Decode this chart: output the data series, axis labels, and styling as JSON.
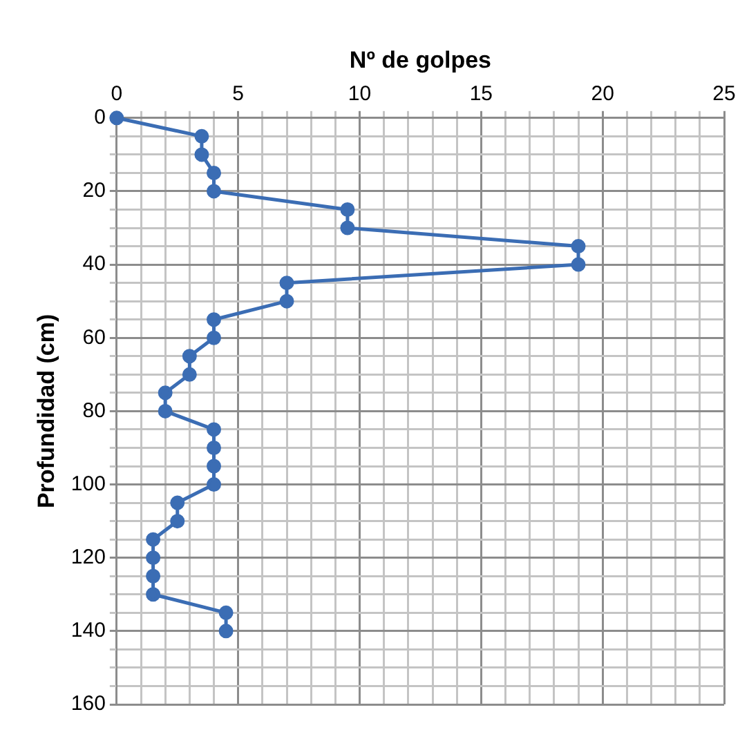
{
  "chart_data": {
    "type": "line",
    "xlabel": "Nº de golpes",
    "ylabel": "Profundidad (cm)",
    "xlim": [
      0,
      25
    ],
    "xticks": [
      0,
      {
        "value": 1,
        "label": null
      },
      {
        "value": 2,
        "label": null
      },
      {
        "value": 3,
        "label": null
      },
      {
        "value": 4,
        "label": null
      },
      5,
      {
        "value": 6,
        "label": null
      },
      {
        "value": 7,
        "label": null
      },
      {
        "value": 8,
        "label": null
      },
      {
        "value": 9,
        "label": null
      },
      10,
      {
        "value": 11,
        "label": null
      },
      {
        "value": 12,
        "label": null
      },
      {
        "value": 13,
        "label": null
      },
      {
        "value": 14,
        "label": null
      },
      15,
      {
        "value": 16,
        "label": null
      },
      {
        "value": 17,
        "label": null
      },
      {
        "value": 18,
        "label": null
      },
      {
        "value": 19,
        "label": null
      },
      20,
      {
        "value": 21,
        "label": null
      },
      {
        "value": 22,
        "label": null
      },
      {
        "value": 23,
        "label": null
      },
      {
        "value": 24,
        "label": null
      },
      25
    ],
    "ylim": [
      160,
      0
    ],
    "yticks": [
      0,
      {
        "value": 5,
        "label": null
      },
      {
        "value": 10,
        "label": null
      },
      {
        "value": 15,
        "label": null
      },
      20,
      {
        "value": 25,
        "label": null
      },
      {
        "value": 30,
        "label": null
      },
      {
        "value": 35,
        "label": null
      },
      40,
      {
        "value": 45,
        "label": null
      },
      {
        "value": 50,
        "label": null
      },
      {
        "value": 55,
        "label": null
      },
      60,
      {
        "value": 65,
        "label": null
      },
      {
        "value": 70,
        "label": null
      },
      {
        "value": 75,
        "label": null
      },
      80,
      {
        "value": 85,
        "label": null
      },
      {
        "value": 90,
        "label": null
      },
      {
        "value": 95,
        "label": null
      },
      100,
      {
        "value": 105,
        "label": null
      },
      {
        "value": 110,
        "label": null
      },
      {
        "value": 115,
        "label": null
      },
      120,
      {
        "value": 125,
        "label": null
      },
      {
        "value": 130,
        "label": null
      },
      {
        "value": 135,
        "label": null
      },
      140,
      {
        "value": 145,
        "label": null
      },
      {
        "value": 150,
        "label": null
      },
      {
        "value": 155,
        "label": null
      },
      160
    ],
    "grid": true,
    "marker": "circle",
    "line_style": "solid",
    "series": [
      {
        "color": "#3b6db4",
        "x": [
          0,
          5,
          10,
          15,
          20,
          25,
          30,
          35,
          40,
          45,
          50,
          55,
          60,
          65,
          70,
          75,
          80,
          85,
          90,
          95,
          100,
          105,
          110,
          115,
          120,
          125,
          130,
          135,
          140
        ],
        "values": [
          0,
          3.5,
          3.5,
          4,
          4,
          9.5,
          9.5,
          19,
          19,
          7,
          7,
          4,
          4,
          3,
          3,
          2,
          2,
          4,
          4,
          4,
          4,
          2.5,
          2.5,
          1.5,
          1.5,
          1.5,
          1.5,
          4.5,
          4.5
        ]
      }
    ],
    "orientation": "horizontal"
  }
}
